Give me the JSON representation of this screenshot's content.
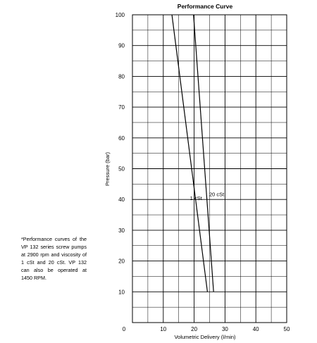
{
  "note": "*Performance curves of the VP 132 series screw pumps at 2900 rpm and viscosity of 1 cSt and 20 cSt. VP 132 can also be operated at 1450 RPM.",
  "chart_data": {
    "type": "line",
    "title": "Performance Curve",
    "xlabel": "Volumetric Delivery (l/min)",
    "ylabel": "Pressure (bar)",
    "xlim": [
      0,
      50
    ],
    "ylim": [
      0,
      100
    ],
    "x_ticks": [
      0,
      10,
      20,
      30,
      40,
      50
    ],
    "y_ticks": [
      10,
      20,
      30,
      40,
      50,
      60,
      70,
      80,
      90,
      100
    ],
    "grid": true,
    "series": [
      {
        "name": "1 cSt",
        "x": [
          12.8,
          24.3
        ],
        "y": [
          100,
          10
        ],
        "label_at": [
          20.6,
          39.8
        ],
        "color": "#000000"
      },
      {
        "name": "20 cSt",
        "x": [
          19.8,
          26.3
        ],
        "y": [
          100,
          10
        ],
        "label_at": [
          27.3,
          41.1
        ],
        "color": "#000000"
      }
    ]
  }
}
